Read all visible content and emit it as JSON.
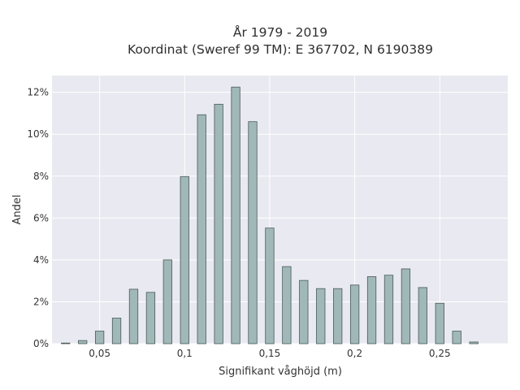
{
  "chart_data": {
    "type": "bar",
    "title": "År 1979 - 2019",
    "subtitle": "Koordinat (Sweref 99 TM): E 367702, N 6190389",
    "xlabel": "Signifikant våghöjd (m)",
    "ylabel": "Andel",
    "xlim": [
      0.022,
      0.29
    ],
    "ylim": [
      0,
      0.128
    ],
    "x_ticks": [
      {
        "value": 0.05,
        "label": "0,05"
      },
      {
        "value": 0.1,
        "label": "0,1"
      },
      {
        "value": 0.15,
        "label": "0,15"
      },
      {
        "value": 0.2,
        "label": "0,2"
      },
      {
        "value": 0.25,
        "label": "0,25"
      }
    ],
    "y_ticks": [
      {
        "value": 0,
        "label": "0%"
      },
      {
        "value": 0.02,
        "label": "2%"
      },
      {
        "value": 0.04,
        "label": "4%"
      },
      {
        "value": 0.06,
        "label": "6%"
      },
      {
        "value": 0.08,
        "label": "8%"
      },
      {
        "value": 0.1,
        "label": "10%"
      },
      {
        "value": 0.12,
        "label": "12%"
      }
    ],
    "bar_width": 0.005,
    "x": [
      0.03,
      0.04,
      0.05,
      0.06,
      0.07,
      0.08,
      0.09,
      0.1,
      0.11,
      0.12,
      0.13,
      0.14,
      0.15,
      0.16,
      0.17,
      0.18,
      0.19,
      0.2,
      0.21,
      0.22,
      0.23,
      0.24,
      0.25,
      0.26,
      0.27
    ],
    "values": [
      0.0003,
      0.0015,
      0.006,
      0.0122,
      0.026,
      0.0245,
      0.04,
      0.0798,
      0.1093,
      0.1143,
      0.1225,
      0.106,
      0.0552,
      0.0368,
      0.0302,
      0.0263,
      0.0263,
      0.028,
      0.032,
      0.0327,
      0.0357,
      0.0268,
      0.0193,
      0.006,
      0.0008
    ],
    "grid": true,
    "colors": {
      "plot_background": "#e9e9f1",
      "grid": "#ffffff",
      "bar_fill": "#a0b8b8",
      "bar_stroke": "#4a5a58"
    }
  }
}
